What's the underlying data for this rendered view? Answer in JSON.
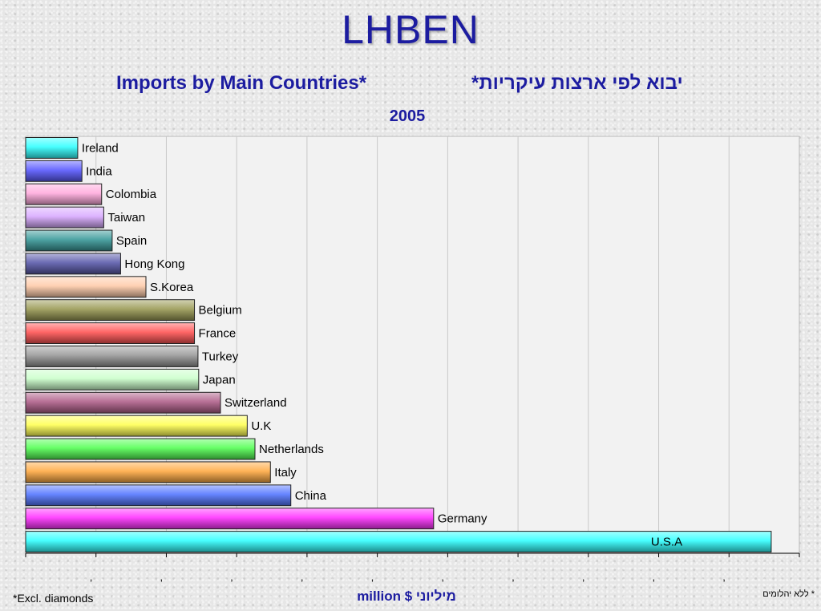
{
  "slide_title": "LHBEN",
  "chart_title_en": "Imports by Main Countries*",
  "chart_title_he": "יבוא לפי ארצות עיקריות*",
  "chart_year": "2005",
  "unit_label": "מיליוני $ million",
  "footnote_left": "*Excl. diamonds",
  "footnote_right": "* ללא יהלומים",
  "chart_data": {
    "type": "bar",
    "orientation": "horizontal",
    "categories": [
      "Ireland",
      "India",
      "Colombia",
      "Taiwan",
      "Spain",
      "Hong Kong",
      "S.Korea",
      "Belgium",
      "France",
      "Turkey",
      "Japan",
      "Switzerland",
      "U.K",
      "Netherlands",
      "Italy",
      "China",
      "Germany",
      "U.S.A"
    ],
    "values": [
      740,
      800,
      1080,
      1110,
      1230,
      1350,
      1710,
      2400,
      2400,
      2450,
      2460,
      2770,
      3150,
      3260,
      3480,
      3770,
      5800,
      10600
    ],
    "colors": [
      "#33ffff",
      "#5a5aff",
      "#ffaadd",
      "#d9aaff",
      "#3a9a9a",
      "#5a5aaa",
      "#ffccaa",
      "#9a9a55",
      "#ff5555",
      "#999999",
      "#ccffcc",
      "#b0608a",
      "#ffff55",
      "#55ff55",
      "#ffaa44",
      "#5577ff",
      "#ff33ff",
      "#33ffff"
    ],
    "xlim": [
      0,
      11000
    ],
    "x_tick_step": 1000,
    "x_tick_labels": [
      ",",
      ",",
      ",",
      ",",
      ",",
      ",",
      ",",
      ",",
      ",",
      ","
    ],
    "grid": true,
    "legend": "none"
  }
}
